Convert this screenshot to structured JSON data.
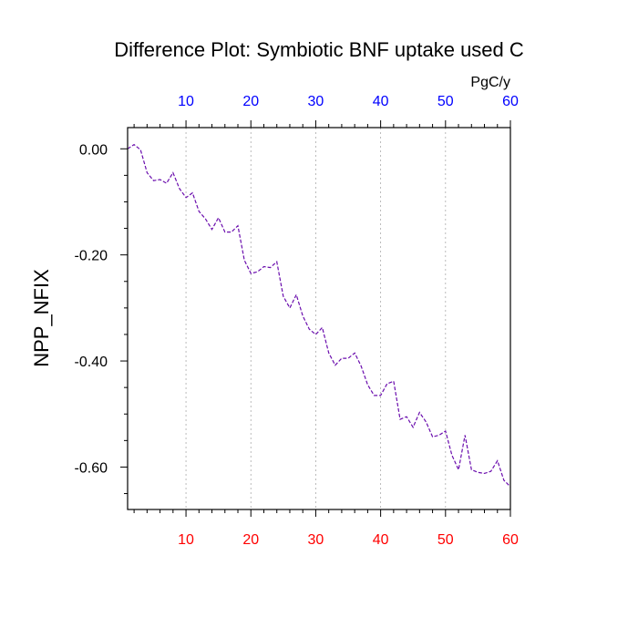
{
  "chart_data": {
    "type": "line",
    "title": "Difference Plot: Symbiotic BNF uptake used C",
    "ylabel": "NPP_NFIX",
    "units": "PgC/y",
    "xlim": [
      1,
      60
    ],
    "ylim": [
      -0.68,
      0.04
    ],
    "x_ticks": [
      10,
      20,
      30,
      40,
      50,
      60
    ],
    "y_ticks": [
      0.0,
      -0.2,
      -0.4,
      -0.6
    ],
    "y_tick_labels": [
      "0.00",
      "-0.20",
      "-0.40",
      "-0.60"
    ],
    "grid_vertical": true,
    "top_axis_color": "#0000ff",
    "bottom_axis_color": "#ff0000",
    "line_color": "#6a0dad",
    "x": [
      1,
      2,
      3,
      4,
      5,
      6,
      7,
      8,
      9,
      10,
      11,
      12,
      13,
      14,
      15,
      16,
      17,
      18,
      19,
      20,
      21,
      22,
      23,
      24,
      25,
      26,
      27,
      28,
      29,
      30,
      31,
      32,
      33,
      34,
      35,
      36,
      37,
      38,
      39,
      40,
      41,
      42,
      43,
      44,
      45,
      46,
      47,
      48,
      49,
      50,
      51,
      52,
      53,
      54,
      55,
      56,
      57,
      58,
      59,
      60
    ],
    "values": [
      0.0,
      0.008,
      -0.002,
      -0.045,
      -0.06,
      -0.058,
      -0.065,
      -0.045,
      -0.075,
      -0.092,
      -0.083,
      -0.118,
      -0.132,
      -0.152,
      -0.13,
      -0.157,
      -0.157,
      -0.145,
      -0.21,
      -0.235,
      -0.232,
      -0.222,
      -0.224,
      -0.213,
      -0.278,
      -0.3,
      -0.275,
      -0.315,
      -0.34,
      -0.35,
      -0.337,
      -0.385,
      -0.408,
      -0.395,
      -0.395,
      -0.385,
      -0.41,
      -0.445,
      -0.465,
      -0.465,
      -0.443,
      -0.438,
      -0.51,
      -0.505,
      -0.525,
      -0.497,
      -0.515,
      -0.543,
      -0.54,
      -0.532,
      -0.578,
      -0.605,
      -0.54,
      -0.605,
      -0.61,
      -0.612,
      -0.608,
      -0.588,
      -0.625,
      -0.637
    ]
  }
}
